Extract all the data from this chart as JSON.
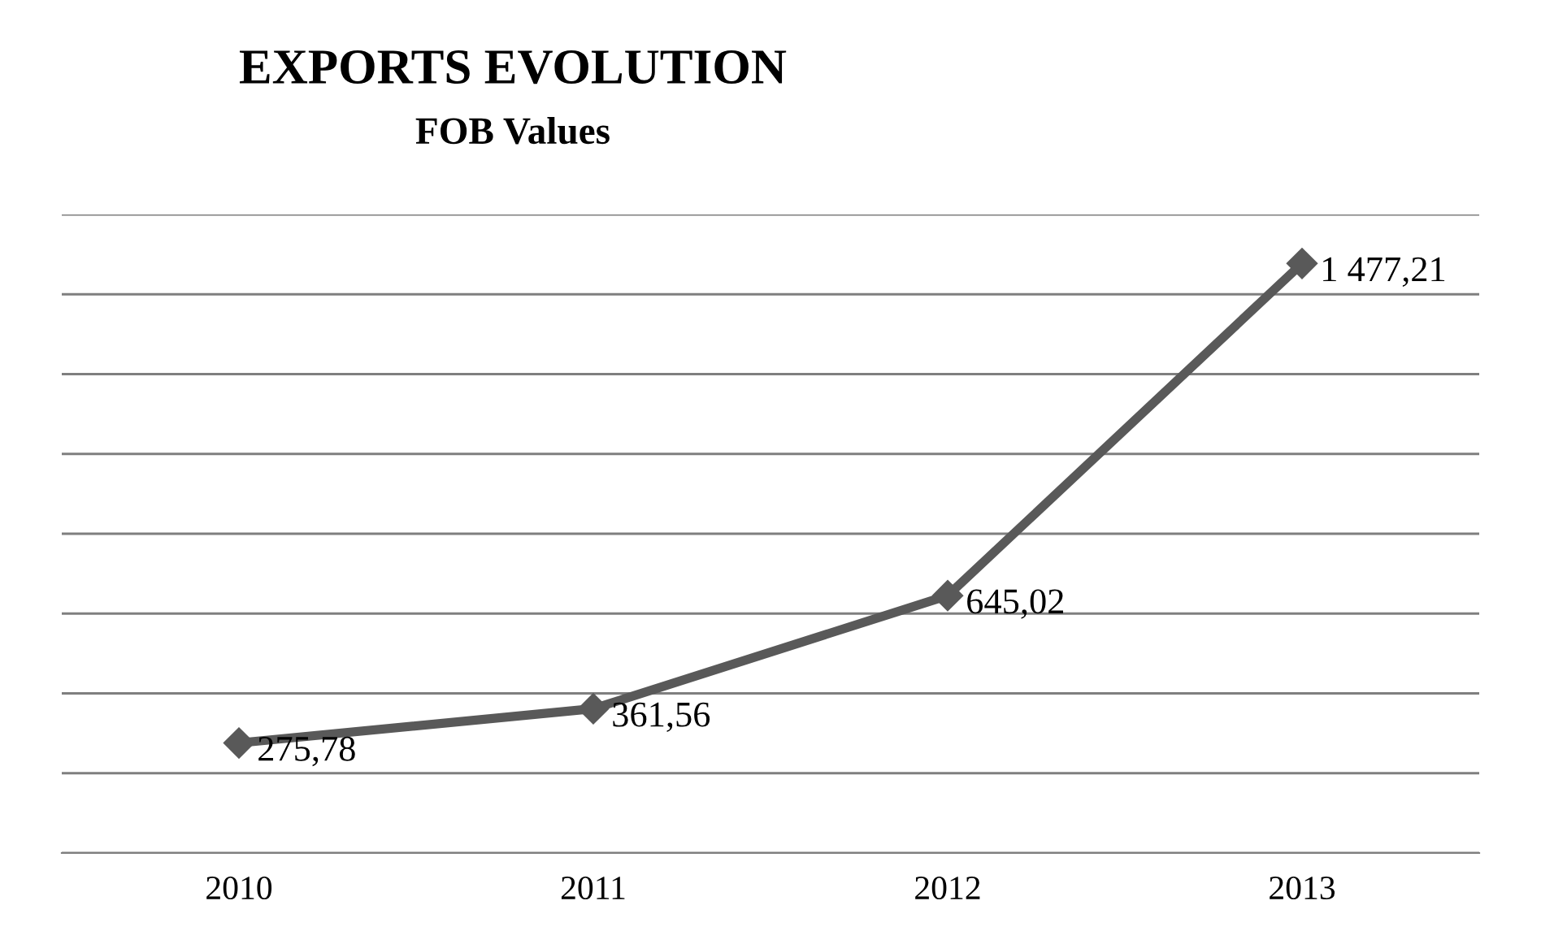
{
  "chart_data": {
    "type": "line",
    "title": "EXPORTS EVOLUTION",
    "subtitle": "FOB Values",
    "categories": [
      "2010",
      "2011",
      "2012",
      "2013"
    ],
    "series": [
      {
        "color": "#595959",
        "values": [
          275.78,
          361.56,
          645.02,
          1477.21
        ],
        "value_labels": [
          "275,78",
          "361,56",
          "645,02",
          "1 477,21"
        ]
      }
    ],
    "ylim": [
      0,
      1600
    ],
    "yticks": [
      {
        "value": 0,
        "label": null
      },
      {
        "value": 200,
        "label": null
      },
      {
        "value": 400,
        "label": null
      },
      {
        "value": 600,
        "label": null
      },
      {
        "value": 800,
        "label": null
      },
      {
        "value": 1000,
        "label": null
      },
      {
        "value": 1200,
        "label": null
      },
      {
        "value": 1400,
        "label": null
      },
      {
        "value": 1600,
        "label": null
      }
    ],
    "tick_labels": "x",
    "grid": "y",
    "legend": false,
    "marker": "diamond",
    "line_style": "solid"
  }
}
